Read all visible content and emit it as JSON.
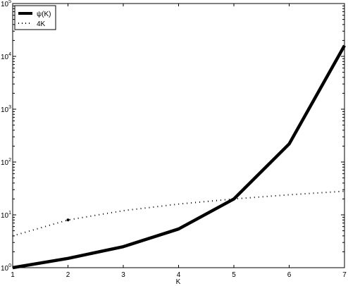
{
  "chart_data": {
    "type": "line",
    "title": "",
    "xlabel": "K",
    "ylabel": "",
    "x": [
      1,
      2,
      3,
      4,
      5,
      6,
      7
    ],
    "xlim": [
      1,
      7
    ],
    "ylim": [
      1,
      100000
    ],
    "yscale": "log",
    "x_ticks": [
      "1",
      "2",
      "3",
      "4",
      "5",
      "6",
      "7"
    ],
    "y_ticks": [
      {
        "base": "10",
        "exp": "0"
      },
      {
        "base": "10",
        "exp": "1"
      },
      {
        "base": "10",
        "exp": "2"
      },
      {
        "base": "10",
        "exp": "3"
      },
      {
        "base": "10",
        "exp": "4"
      },
      {
        "base": "10",
        "exp": "5"
      }
    ],
    "grid": false,
    "legend_position": "top-left",
    "series": [
      {
        "name": "ψ(K)",
        "style": "solid",
        "color": "#000000",
        "values": [
          1,
          1.5,
          2.5,
          5.4,
          20,
          220,
          16000
        ]
      },
      {
        "name": "4K",
        "style": "dotted",
        "color": "#000000",
        "values": [
          4,
          8,
          12,
          16,
          20,
          24,
          28
        ]
      }
    ]
  }
}
